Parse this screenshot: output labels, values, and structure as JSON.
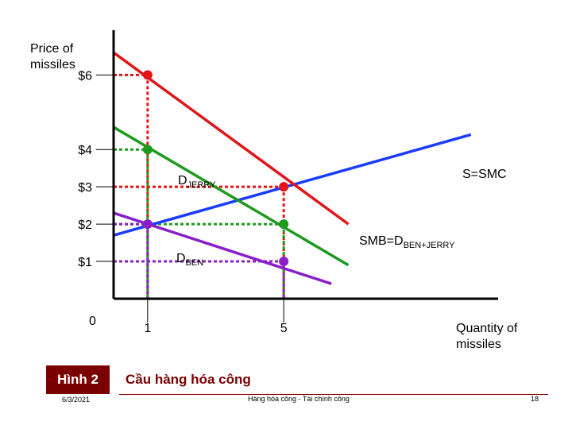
{
  "slide": {
    "figure_label": "Hình 2",
    "figure_title": "Cầu hàng hóa công",
    "date": "6/3/2021",
    "course": "Hàng hóa công - Tài chính công",
    "page": "18"
  },
  "chart_data": {
    "type": "line",
    "ylabel_lines": [
      "Price of",
      "missiles"
    ],
    "xlabel_lines": [
      "Quantity of",
      "missiles"
    ],
    "origin_label": "0",
    "xlim": [
      0,
      11.3
    ],
    "ylim": [
      0,
      7.2
    ],
    "x_ticks": [
      {
        "value": 1,
        "label": "1"
      },
      {
        "value": 5,
        "label": "5"
      }
    ],
    "y_ticks": [
      {
        "value": 6,
        "label": "$6"
      },
      {
        "value": 4,
        "label": "$4"
      },
      {
        "value": 3,
        "label": "$3"
      },
      {
        "value": 2,
        "label": "$2"
      },
      {
        "value": 1,
        "label": "$1"
      }
    ],
    "series": [
      {
        "name": "S=SMC",
        "color": "#1a3cff",
        "points": [
          [
            0,
            1.7
          ],
          [
            10.5,
            4.4
          ]
        ],
        "label_main": "S=SMC",
        "label_sub": ""
      },
      {
        "name": "DJERRY",
        "color": "#1f9a1f",
        "points": [
          [
            0,
            4.6
          ],
          [
            6.9,
            0.9
          ]
        ],
        "label_main": "D",
        "label_sub": "JERRY"
      },
      {
        "name": "DBEN",
        "color": "#8a1fc8",
        "points": [
          [
            0,
            2.3
          ],
          [
            6.4,
            0.4
          ]
        ],
        "label_main": "D",
        "label_sub": "BEN"
      },
      {
        "name": "SMB=DBEN+JERRY",
        "color": "#e0161a",
        "points": [
          [
            0,
            6.6
          ],
          [
            6.9,
            2.0
          ]
        ],
        "label_main": "SMB=D",
        "label_sub": "BEN+JERRY"
      }
    ],
    "markers": [
      {
        "name": "red-point-1",
        "x": 1,
        "y": 6,
        "color": "#e0161a"
      },
      {
        "name": "red-point-5",
        "x": 5,
        "y": 3,
        "color": "#e0161a"
      },
      {
        "name": "green-point-1",
        "x": 1,
        "y": 4,
        "color": "#1f9a1f"
      },
      {
        "name": "green-point-5",
        "x": 5,
        "y": 2,
        "color": "#1f9a1f"
      },
      {
        "name": "purple-point-1",
        "x": 1,
        "y": 2,
        "color": "#8a1fc8"
      },
      {
        "name": "purple-point-5",
        "x": 5,
        "y": 1,
        "color": "#8a1fc8"
      }
    ]
  }
}
